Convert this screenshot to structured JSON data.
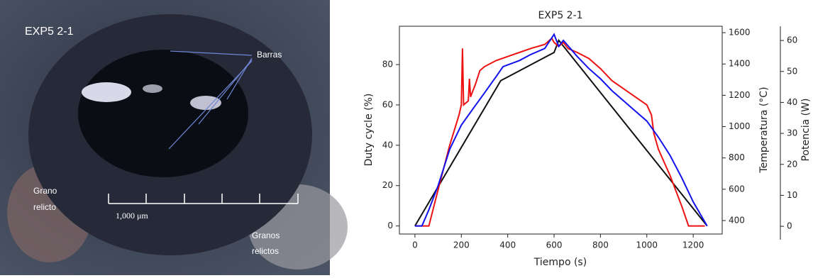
{
  "photo": {
    "label": "EXP5 2-1",
    "bars_label": "Barras",
    "grain_label": [
      "Grano",
      "relicto"
    ],
    "grains_label": [
      "Granos",
      "relictos"
    ],
    "scale_label": "1,000 μm"
  },
  "chart_data": {
    "type": "line",
    "title": "EXP5 2-1",
    "xlabel": "Tiempo (s)",
    "ylabel": "Duty cycle (%)",
    "y2label": "Temperatura (°C)",
    "y3label": "Potencia (W)",
    "xlim": [
      -67,
      1325
    ],
    "xticks": [
      0,
      200,
      400,
      600,
      800,
      1000,
      1200
    ],
    "ylim": [
      -4,
      99
    ],
    "yticks": [
      0,
      20,
      40,
      60,
      80
    ],
    "y2lim": [
      314,
      1641
    ],
    "y2ticks": [
      400,
      600,
      800,
      1000,
      1200,
      1400,
      1600
    ],
    "y3lim": [
      -2.5,
      64.6
    ],
    "y3ticks": [
      0,
      10,
      20,
      30,
      40,
      50,
      60
    ],
    "series": [
      {
        "color": "#111111",
        "x": [
          0,
          370,
          600,
          620,
          1260
        ],
        "values": [
          0,
          72,
          86,
          92,
          0
        ]
      },
      {
        "color": "#ee1111",
        "x": [
          0,
          60,
          100,
          150,
          190,
          200,
          205,
          210,
          230,
          235,
          240,
          260,
          280,
          300,
          350,
          400,
          450,
          500,
          560,
          590,
          600,
          620,
          640,
          660,
          700,
          750,
          800,
          850,
          900,
          950,
          1000,
          1020,
          1030,
          1050,
          1100,
          1150,
          1180,
          1250
        ],
        "values": [
          0,
          0,
          18,
          40,
          55,
          60,
          88,
          60,
          62,
          73,
          64,
          70,
          77,
          79,
          82,
          84,
          86,
          88,
          90,
          93,
          91,
          89,
          91,
          88,
          86,
          83,
          78,
          72,
          68,
          64,
          60,
          55,
          46,
          38,
          25,
          10,
          0,
          0
        ]
      },
      {
        "color": "#1111ee",
        "x": [
          0,
          30,
          60,
          100,
          150,
          200,
          250,
          300,
          350,
          380,
          450,
          500,
          560,
          600,
          620,
          640,
          700,
          750,
          800,
          850,
          900,
          950,
          1000,
          1050,
          1100,
          1150,
          1200,
          1260
        ],
        "values": [
          0,
          0,
          8,
          20,
          38,
          50,
          58,
          66,
          74,
          79,
          82,
          85,
          88,
          95,
          89,
          92,
          84,
          78,
          73,
          67,
          62,
          57,
          52,
          44,
          35,
          24,
          12,
          0
        ]
      }
    ]
  }
}
